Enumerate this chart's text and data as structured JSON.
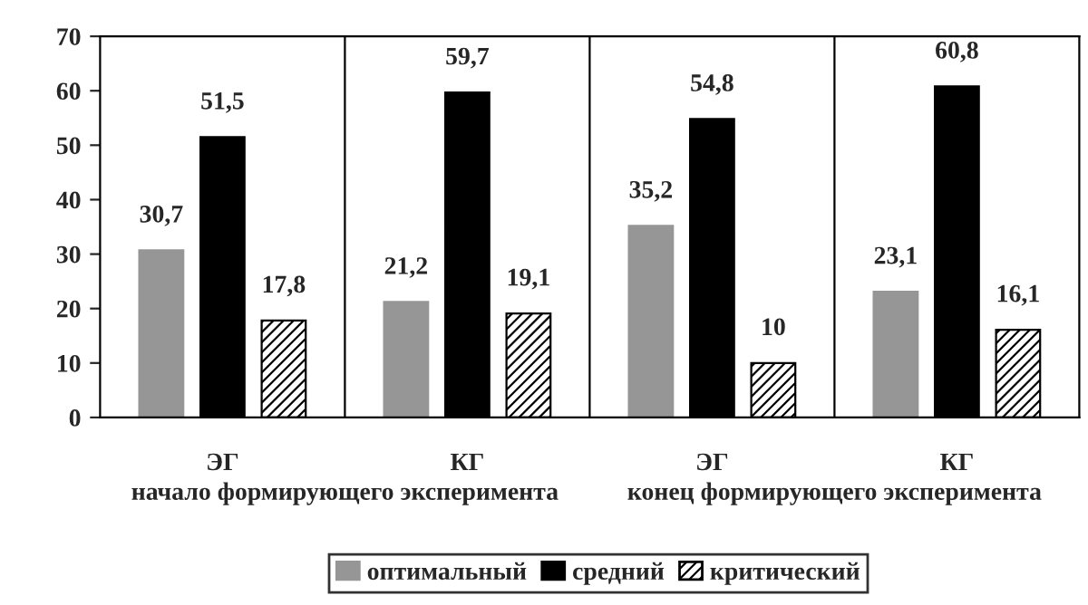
{
  "chart_data": {
    "type": "bar",
    "categories": [
      "ЭГ",
      "КГ",
      "ЭГ",
      "КГ"
    ],
    "series": [
      {
        "name": "оптимальный",
        "color": "#969696",
        "values": [
          30.7,
          21.2,
          35.2,
          23.1
        ],
        "value_labels": [
          "30,7",
          "21,2",
          "35,2",
          "23,1"
        ]
      },
      {
        "name": "средний",
        "color": "#000000",
        "values": [
          51.5,
          59.7,
          54.8,
          60.8
        ],
        "value_labels": [
          "51,5",
          "59,7",
          "54,8",
          "60,8"
        ]
      },
      {
        "name": "критический",
        "color": "#000000",
        "values": [
          17.8,
          19.1,
          10,
          16.1
        ],
        "value_labels": [
          "17,8",
          "19,1",
          "10",
          "16,1"
        ]
      }
    ],
    "ylim": [
      0,
      70
    ],
    "yticks": [
      0,
      10,
      20,
      30,
      40,
      50,
      60,
      70
    ],
    "grid": "x",
    "legend": "bottom",
    "annotations": [
      "начало формирующего эксперимента",
      "конец формирующего эксперимента"
    ]
  }
}
